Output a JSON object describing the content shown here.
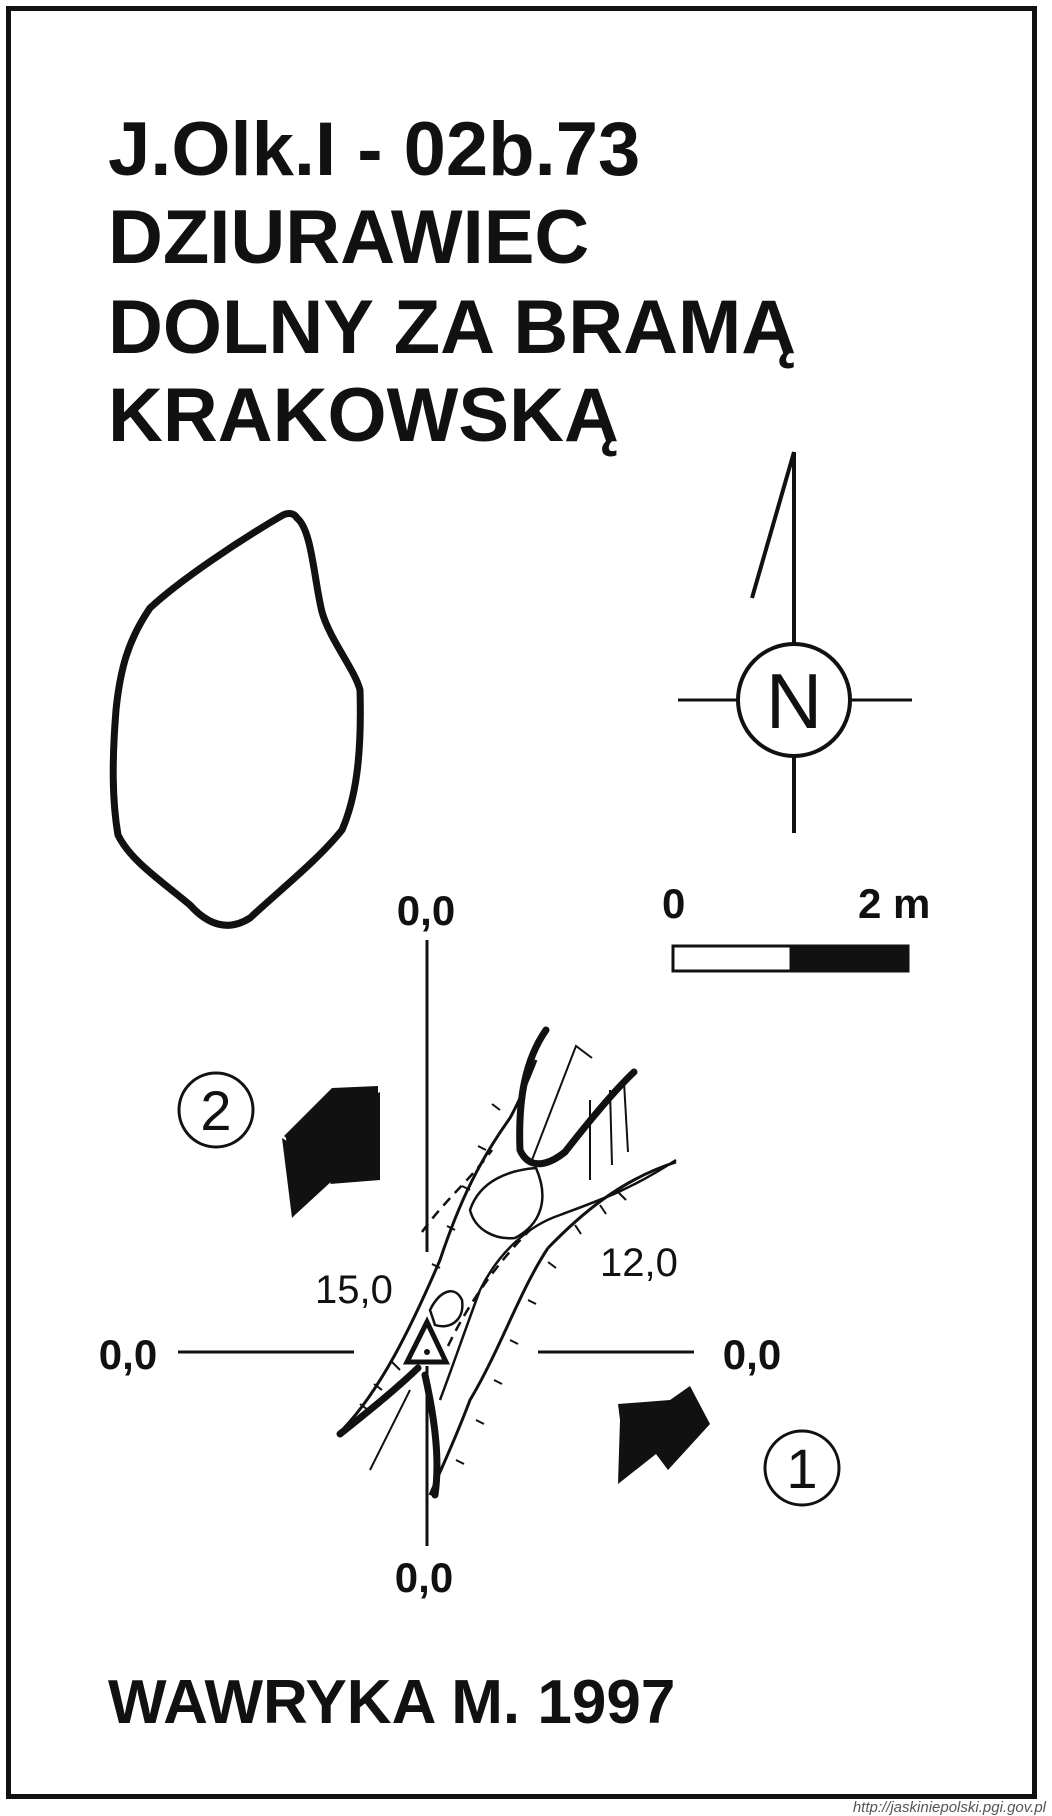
{
  "title": {
    "code": "J.Olk.I - 02b.73",
    "line1": "DZIURAWIEC",
    "line2": "DOLNY ZA BRAMĄ",
    "line3": "KRAKOWSKĄ"
  },
  "compass": {
    "north_letter": "N"
  },
  "scale_bar": {
    "start_label": "0",
    "end_label": "2 m"
  },
  "section_markers": {
    "top": "0,0",
    "bottom": "0,0",
    "left": "0,0",
    "right": "0,0"
  },
  "depth_labels": {
    "left": "15,0",
    "right": "12,0"
  },
  "view_markers": {
    "first": "1",
    "second": "2"
  },
  "author": "WAWRYKA M. 1997",
  "source_url": "http://jaskiniepolski.pgi.gov.pl",
  "colors": {
    "ink": "#111111",
    "paper": "#ffffff"
  }
}
